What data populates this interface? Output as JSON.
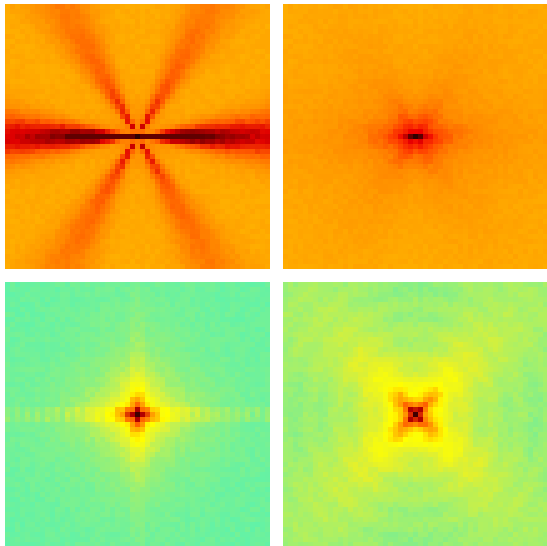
{
  "panels": [
    {
      "pattern": "spokes",
      "colormap": [
        "#ffd200",
        "#ffae00",
        "#ff8a00",
        "#ff5a00",
        "#e00000",
        "#600000"
      ],
      "background": "#ffc400",
      "center": "#300000"
    },
    {
      "pattern": "radial",
      "colormap": [
        "#ffc200",
        "#ffaa00",
        "#ff8800",
        "#ff4400",
        "#ee0000",
        "#500000"
      ],
      "background": "#ffb400",
      "center": "#300000"
    },
    {
      "pattern": "cross",
      "colormap": [
        "#58f2b0",
        "#90f07c",
        "#dcf23a",
        "#ffff00",
        "#ffb400",
        "#ff6000",
        "#b00000"
      ],
      "background": "#5cf0aa",
      "center": "#400000"
    },
    {
      "pattern": "rings",
      "colormap": [
        "#60eea8",
        "#a6f06a",
        "#e2f02e",
        "#ffff00",
        "#ffb000",
        "#ff5000",
        "#b00000"
      ],
      "background": "#66eea4",
      "center": "#400000"
    }
  ]
}
